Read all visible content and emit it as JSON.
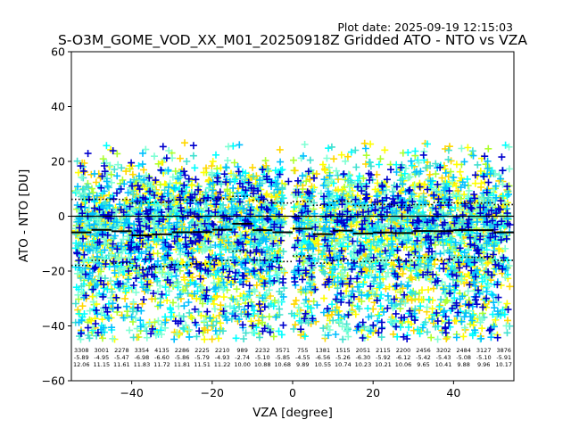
{
  "plot_date": "Plot date: 2025-09-19 12:15:03",
  "chart_data": {
    "type": "scatter",
    "title": "S-O3M_GOME_VOD_XX_M01_20250918Z Gridded ATO - NTO vs VZA",
    "xlabel": "VZA [degree]",
    "ylabel": "ATO - NTO [DU]",
    "xlim": [
      -55,
      55
    ],
    "ylim": [
      -60,
      60
    ],
    "xticks": [
      -40,
      -20,
      0,
      20,
      40
    ],
    "yticks": [
      -60,
      -40,
      -20,
      0,
      20,
      40,
      60
    ],
    "grid": false,
    "legend": "none",
    "marker": "+",
    "colors": [
      "#0000cd",
      "#00bfff",
      "#00ffff",
      "#40e0d0",
      "#7fffd4",
      "#adff2f",
      "#ffd700",
      "#ffff00"
    ],
    "bin_width": 4,
    "bins": [
      {
        "x": -53,
        "count": 3308,
        "mean": -5.89,
        "std": 12.06
      },
      {
        "x": -49,
        "count": 3001,
        "mean": -4.95,
        "std": 11.15
      },
      {
        "x": -45,
        "count": 2278,
        "mean": -5.47,
        "std": 11.61
      },
      {
        "x": -41,
        "count": 3354,
        "mean": -6.98,
        "std": 11.83
      },
      {
        "x": -37,
        "count": 4135,
        "mean": -6.6,
        "std": 11.72
      },
      {
        "x": -33,
        "count": 2286,
        "mean": -5.86,
        "std": 11.81
      },
      {
        "x": -29,
        "count": 2225,
        "mean": -5.79,
        "std": 11.51
      },
      {
        "x": -25,
        "count": 2210,
        "mean": -4.93,
        "std": 11.22
      },
      {
        "x": -21,
        "count": 989,
        "mean": -2.74,
        "std": 10.0
      },
      {
        "x": -17,
        "count": 2232,
        "mean": -5.1,
        "std": 10.88
      },
      {
        "x": -13,
        "count": 3571,
        "mean": -5.85,
        "std": 10.68
      },
      {
        "x": -9,
        "count": 755,
        "mean": -4.55,
        "std": 9.89
      },
      {
        "x": -5,
        "count": 1381,
        "mean": -6.56,
        "std": 10.55
      },
      {
        "x": -1,
        "count": 1515,
        "mean": -5.26,
        "std": 10.74
      },
      {
        "x": 3,
        "count": 2051,
        "mean": -6.3,
        "std": 10.23
      },
      {
        "x": 7,
        "count": 2115,
        "mean": -5.92,
        "std": 10.21
      },
      {
        "x": 11,
        "count": 2200,
        "mean": -6.12,
        "std": 10.06
      },
      {
        "x": 15,
        "count": 2456,
        "mean": -5.42,
        "std": 9.65
      },
      {
        "x": 19,
        "count": 3202,
        "mean": -5.43,
        "std": 10.41
      },
      {
        "x": 23,
        "count": 2484,
        "mean": -5.08,
        "std": 9.88
      },
      {
        "x": 27,
        "count": 3127,
        "mean": -5.1,
        "std": 9.96
      },
      {
        "x": 31,
        "count": 3876,
        "mean": -5.91,
        "std": 10.17
      }
    ]
  }
}
